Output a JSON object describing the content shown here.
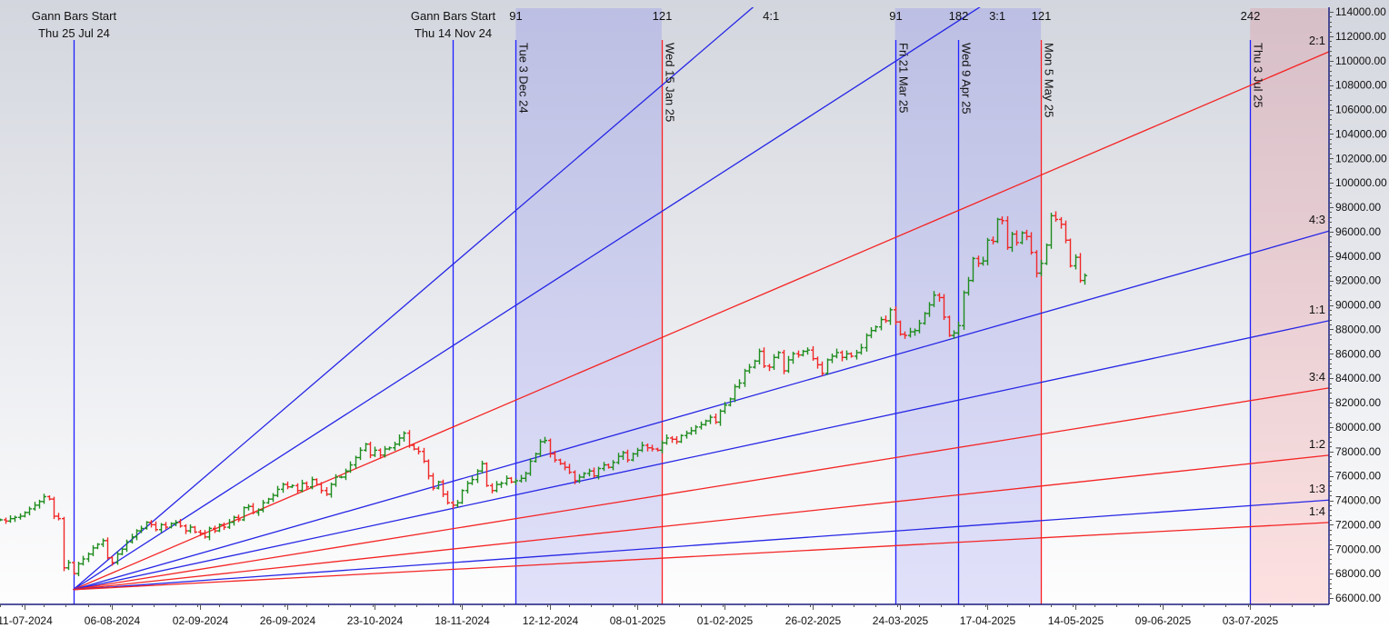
{
  "chart_data": {
    "type": "ohlc-bar",
    "title": "",
    "xlabel": "",
    "ylabel": "",
    "ylim": [
      66000,
      114000
    ],
    "y_ticks": [
      66000,
      68000,
      70000,
      72000,
      74000,
      76000,
      78000,
      80000,
      82000,
      84000,
      86000,
      88000,
      90000,
      92000,
      94000,
      96000,
      98000,
      100000,
      102000,
      104000,
      106000,
      108000,
      110000,
      112000,
      114000
    ],
    "y_tick_format_decimals": 2,
    "x_axis_unit": "trading-bar index (0 = 11-07-2024)",
    "x_range_bars": [
      -5,
      268
    ],
    "x_ticks": [
      {
        "bar": 0,
        "label": "11-07-2024"
      },
      {
        "bar": 18,
        "label": "06-08-2024"
      },
      {
        "bar": 36,
        "label": "02-09-2024"
      },
      {
        "bar": 54,
        "label": "26-09-2024"
      },
      {
        "bar": 72,
        "label": "23-10-2024"
      },
      {
        "bar": 90,
        "label": "18-11-2024"
      },
      {
        "bar": 108,
        "label": "12-12-2024"
      },
      {
        "bar": 126,
        "label": "08-01-2025"
      },
      {
        "bar": 144,
        "label": "01-02-2025"
      },
      {
        "bar": 162,
        "label": "26-02-2025"
      },
      {
        "bar": 180,
        "label": "24-03-2025"
      },
      {
        "bar": 198,
        "label": "17-04-2025"
      },
      {
        "bar": 216,
        "label": "14-05-2025"
      },
      {
        "bar": 234,
        "label": "09-06-2025"
      },
      {
        "bar": 252,
        "label": "03-07-2025"
      }
    ],
    "bars": {
      "start_bar": -5,
      "close": [
        72400,
        72300,
        72500,
        72600,
        72700,
        73000,
        73300,
        73600,
        73900,
        74300,
        74100,
        72700,
        72500,
        68470,
        68900,
        68000,
        68800,
        69200,
        69600,
        70100,
        70400,
        70700,
        69300,
        68900,
        69600,
        70000,
        70600,
        71000,
        71500,
        71700,
        72200,
        72000,
        71600,
        72000,
        71800,
        72100,
        72200,
        71900,
        71500,
        71800,
        71400,
        71300,
        71000,
        71700,
        71500,
        72000,
        71800,
        72200,
        72600,
        72400,
        73400,
        73500,
        73000,
        73200,
        73800,
        74100,
        74400,
        74900,
        75300,
        75100,
        75200,
        74800,
        75400,
        75100,
        75700,
        75300,
        74800,
        74500,
        75300,
        75900,
        75900,
        76400,
        76900,
        77500,
        78100,
        78600,
        77700,
        78100,
        77700,
        78200,
        78300,
        78600,
        79100,
        79500,
        78500,
        78200,
        78000,
        77200,
        76000,
        75000,
        75500,
        74500,
        73800,
        73600,
        73800,
        74800,
        75400,
        75700,
        76400,
        77000,
        75200,
        74800,
        75300,
        75400,
        75800,
        75500,
        75600,
        75800,
        76200,
        77200,
        77800,
        78800,
        78900,
        77800,
        77300,
        77000,
        76700,
        76300,
        75600,
        75900,
        76200,
        76400,
        76000,
        76600,
        76900,
        76700,
        77100,
        77600,
        77900,
        77300,
        77800,
        78100,
        78500,
        78300,
        78200,
        78100,
        78700,
        79100,
        79000,
        78800,
        79300,
        79500,
        79700,
        80000,
        80200,
        80500,
        80800,
        80400,
        81300,
        81800,
        82300,
        83300,
        83600,
        84600,
        84900,
        85400,
        86200,
        85000,
        84900,
        85700,
        86100,
        84600,
        85500,
        86000,
        85900,
        86200,
        86300,
        85600,
        85100,
        84400,
        85500,
        85800,
        86100,
        85700,
        86000,
        85800,
        86100,
        86500,
        87500,
        87900,
        88200,
        88800,
        88700,
        89600,
        88600,
        87600,
        87500,
        87800,
        87900,
        88500,
        89300,
        90000,
        90800,
        90600,
        89000,
        87500,
        87700,
        88300,
        91000,
        92000,
        93800,
        93400,
        93600,
        95300,
        95200,
        97000,
        96900,
        94700,
        95800,
        95100,
        95900,
        95600,
        94300,
        92600,
        93400,
        94900,
        97300,
        97000,
        96600,
        95300,
        93200,
        93900,
        92000,
        92400
      ],
      "up_color": "#1e8c1e",
      "down_color": "#f02828"
    },
    "gann_fan": {
      "origin_bar": 10,
      "origin_price": 66680,
      "price_per_bar_1x1": 85.3,
      "lines": [
        {
          "ratio": "4:1",
          "mult": 4,
          "color": "#2626e6",
          "label_at": "top"
        },
        {
          "ratio": "3:1",
          "mult": 3,
          "color": "#2626e6",
          "label_at": "top"
        },
        {
          "ratio": "2:1",
          "mult": 2,
          "color": "#f42424",
          "label_at": "right"
        },
        {
          "ratio": "4:3",
          "mult": 1.3333,
          "color": "#2626e6",
          "label_at": "right"
        },
        {
          "ratio": "1:1",
          "mult": 1,
          "color": "#2626e6",
          "label_at": "right"
        },
        {
          "ratio": "3:4",
          "mult": 0.75,
          "color": "#f42424",
          "label_at": "right"
        },
        {
          "ratio": "1:2",
          "mult": 0.5,
          "color": "#f42424",
          "label_at": "right"
        },
        {
          "ratio": "1:3",
          "mult": 0.3333,
          "color": "#2626e6",
          "label_at": "right"
        },
        {
          "ratio": "1:4",
          "mult": 0.25,
          "color": "#f42424",
          "label_at": "right"
        }
      ]
    },
    "markers": [
      {
        "bar": 10,
        "color": "#2020ff",
        "title": "Gann Bars Start",
        "date": "Thu 25 Jul 24",
        "kind": "start"
      },
      {
        "bar": 88,
        "color": "#2020ff",
        "title": "Gann Bars Start",
        "date": "Thu 14 Nov 24",
        "kind": "start"
      },
      {
        "bar": 101,
        "color": "#2020ff",
        "date": "Tue 3 Dec 24",
        "count": "91",
        "kind": "cycle"
      },
      {
        "bar": 131,
        "color": "#ff2020",
        "date": "Wed 15 Jan 25",
        "count": "121",
        "kind": "cycle"
      },
      {
        "bar": 179,
        "color": "#2020ff",
        "date": "Fri 21 Mar 25",
        "count": "91",
        "kind": "cycle"
      },
      {
        "bar": 192,
        "color": "#2020ff",
        "date": "Wed 9 Apr 25",
        "count": "182",
        "kind": "cycle"
      },
      {
        "bar": 209,
        "color": "#ff2020",
        "date": "Mon 5 May 25",
        "count": "121",
        "kind": "cycle"
      },
      {
        "bar": 252,
        "color": "#2020ff",
        "date": "Thu 3 Jul 25",
        "count": "242",
        "kind": "cycle"
      }
    ],
    "zones": [
      {
        "from_bar": 101,
        "to_bar": 131,
        "tone": "blue"
      },
      {
        "from_bar": 179,
        "to_bar": 209,
        "tone": "blue"
      },
      {
        "from_bar": 252,
        "to_bar": 268,
        "tone": "pink"
      }
    ],
    "grid": false,
    "legend": "none"
  },
  "colors": {
    "axis": "#1c1c80",
    "background_top": "#d3d6de",
    "background_bottom": "#ffffff",
    "zone_blue_top": "#bcbfe3",
    "zone_blue_bottom": "#e1e1fa",
    "zone_pink_top": "#d7bfc8",
    "zone_pink_bottom": "#fde1e1"
  }
}
